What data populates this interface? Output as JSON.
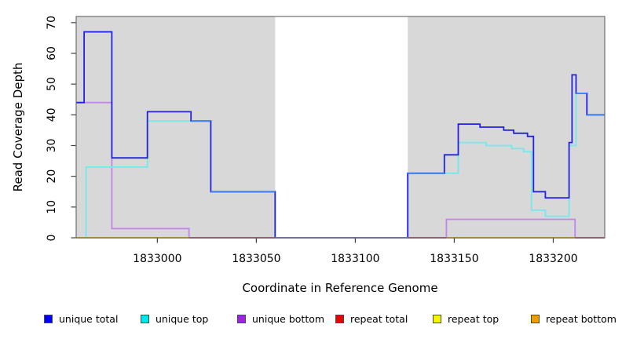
{
  "chart_data": {
    "type": "line",
    "subtype": "step-coverage",
    "title": "",
    "xlabel": "Coordinate in Reference Genome",
    "ylabel": "Read Coverage Depth",
    "xlim": [
      1832959,
      1833226
    ],
    "ylim": [
      0,
      72
    ],
    "x_ticks": [
      1833000,
      1833050,
      1833100,
      1833150,
      1833200
    ],
    "y_ticks": [
      0,
      10,
      20,
      30,
      40,
      50,
      60,
      70
    ],
    "grid": false,
    "plot_bg": "#ffffff",
    "shaded_regions": [
      {
        "x0": 1832959,
        "x1": 1833059.5,
        "color": "#d8d8d8"
      },
      {
        "x0": 1833126.5,
        "x1": 1833226,
        "color": "#d8d8d8"
      }
    ],
    "series": [
      {
        "name": "unique bottom",
        "color": "#c584ec",
        "segments": [
          {
            "steps": [
              [
                1832959,
                44
              ],
              [
                1832977,
                3
              ],
              [
                1833016,
                0
              ],
              [
                1833146,
                6
              ],
              [
                1833211,
                0
              ]
            ],
            "end": 1833226
          }
        ]
      },
      {
        "name": "unique top",
        "color": "#76e8ec",
        "segments": [
          {
            "steps": [
              [
                1832959,
                0
              ],
              [
                1832964,
                23
              ],
              [
                1832995,
                38
              ],
              [
                1833027,
                15
              ],
              [
                1833059.5,
                0
              ],
              [
                1833126.5,
                21
              ],
              [
                1833152,
                31
              ],
              [
                1833166,
                30
              ],
              [
                1833179,
                29
              ],
              [
                1833185,
                28
              ],
              [
                1833189,
                9
              ],
              [
                1833196,
                7
              ],
              [
                1833208,
                30
              ],
              [
                1833211.5,
                47
              ],
              [
                1833217,
                40
              ]
            ],
            "end": 1833226
          }
        ]
      },
      {
        "name": "unique total",
        "color": "#2222e0",
        "overlap_color": "#4285f4",
        "overlap_zero_color": "#8a7fe8",
        "segments": [
          {
            "steps": [
              [
                1832959,
                44
              ],
              [
                1832963,
                67
              ],
              [
                1832977,
                26
              ],
              [
                1832995,
                41
              ],
              [
                1833017,
                38
              ],
              [
                1833027,
                15
              ],
              [
                1833059.5,
                0
              ],
              [
                1833126.5,
                21
              ],
              [
                1833145,
                27
              ],
              [
                1833152,
                37
              ],
              [
                1833163,
                36
              ],
              [
                1833175,
                35
              ],
              [
                1833180,
                34
              ],
              [
                1833187,
                33
              ],
              [
                1833190,
                15
              ],
              [
                1833196,
                13
              ],
              [
                1833208,
                31
              ],
              [
                1833209.5,
                53
              ],
              [
                1833211.5,
                47
              ],
              [
                1833217,
                40
              ]
            ],
            "end": 1833226
          }
        ]
      },
      {
        "name": "repeat total",
        "color": "#c9426b",
        "segments": [
          {
            "steps": [
              [
                1832959,
                0
              ]
            ],
            "end": 1833059.5
          },
          {
            "steps": [
              [
                1833126.5,
                0
              ]
            ],
            "end": 1833226
          }
        ]
      },
      {
        "name": "repeat top",
        "color": "#f5e900",
        "segments": [
          {
            "steps": [
              [
                1832959,
                0
              ]
            ],
            "end": 1833016
          },
          {
            "steps": [
              [
                1833146,
                0
              ]
            ],
            "end": 1833211
          }
        ]
      },
      {
        "name": "repeat bottom",
        "color": "#ffa500",
        "segments": [
          {
            "steps": [
              [
                1832959,
                0
              ]
            ],
            "end": 1833016
          },
          {
            "steps": [
              [
                1833146,
                0
              ]
            ],
            "end": 1833211
          }
        ]
      }
    ],
    "legend": {
      "position": "bottom",
      "items": [
        {
          "label": "unique total",
          "color": "#0000ee"
        },
        {
          "label": "unique top",
          "color": "#00e5ee"
        },
        {
          "label": "unique bottom",
          "color": "#a020f0"
        },
        {
          "label": "repeat total",
          "color": "#ee0000"
        },
        {
          "label": "repeat top",
          "color": "#f5f500"
        },
        {
          "label": "repeat bottom",
          "color": "#f59b00"
        }
      ]
    }
  }
}
